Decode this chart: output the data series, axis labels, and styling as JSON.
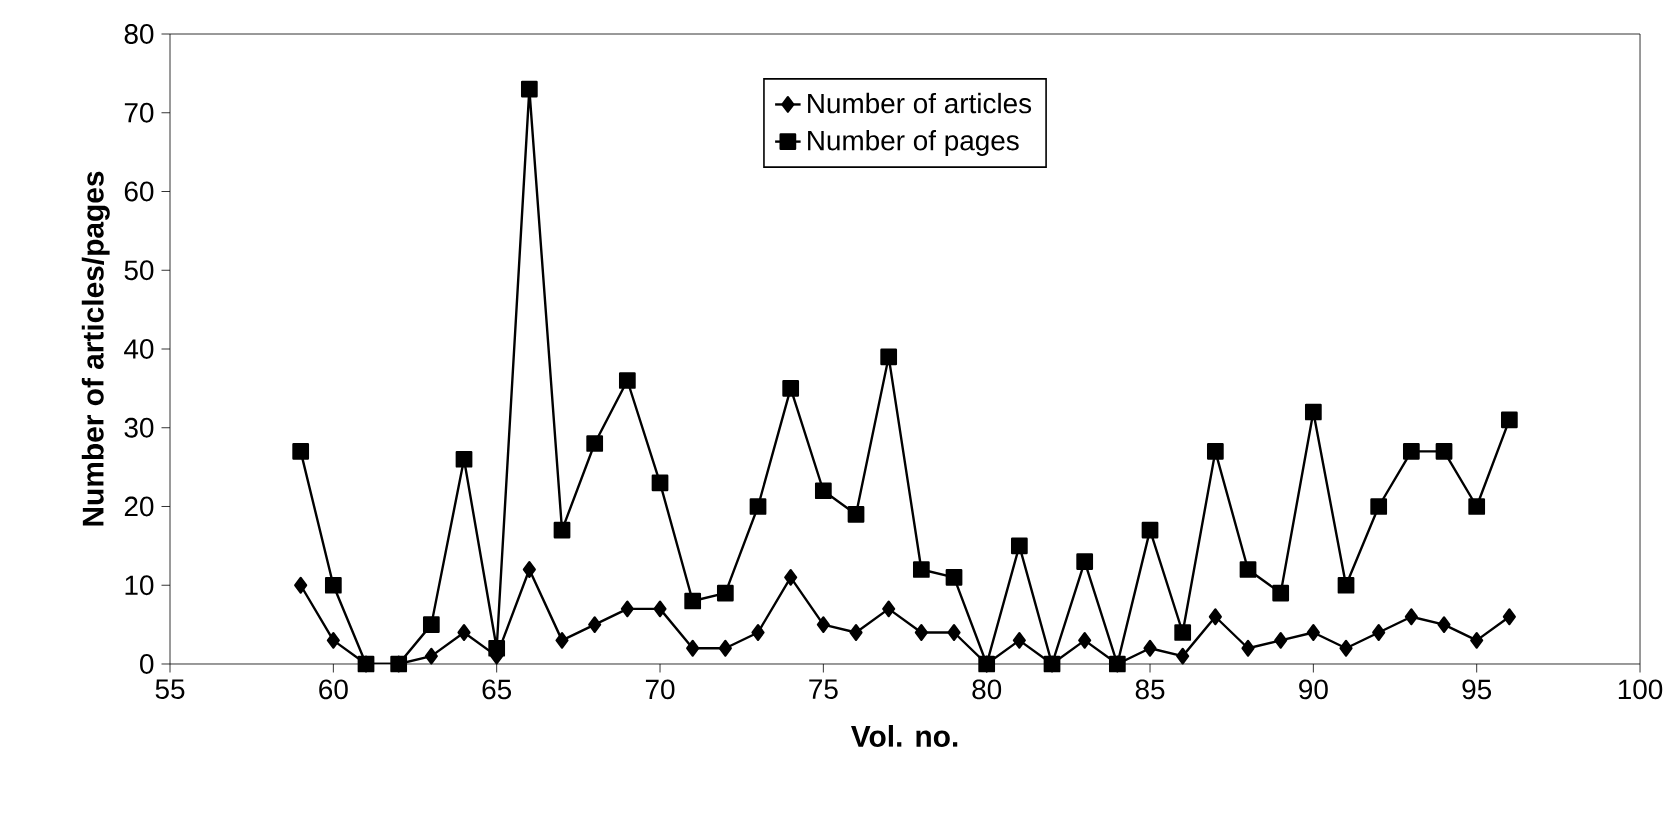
{
  "chart_data": {
    "type": "line",
    "xlabel": "Vol. no.",
    "ylabel": "Number of articles/pages",
    "x": [
      59,
      60,
      61,
      62,
      63,
      64,
      65,
      66,
      67,
      68,
      69,
      70,
      71,
      72,
      73,
      74,
      75,
      76,
      77,
      78,
      79,
      80,
      81,
      82,
      83,
      84,
      85,
      86,
      87,
      88,
      89,
      90,
      91,
      92,
      93,
      94,
      95,
      96
    ],
    "series": [
      {
        "name": "Number of articles",
        "color": "#000000",
        "marker": "diamond",
        "values": [
          10,
          3,
          0,
          0,
          1,
          4,
          1,
          12,
          3,
          5,
          7,
          7,
          2,
          2,
          4,
          11,
          5,
          4,
          7,
          4,
          4,
          0,
          3,
          0,
          3,
          0,
          2,
          1,
          6,
          2,
          3,
          4,
          2,
          4,
          6,
          5,
          3,
          6
        ]
      },
      {
        "name": "Number of pages",
        "color": "#000000",
        "marker": "square",
        "values": [
          27,
          10,
          0,
          0,
          5,
          26,
          2,
          73,
          17,
          28,
          36,
          23,
          8,
          9,
          20,
          35,
          22,
          19,
          39,
          12,
          11,
          0,
          15,
          0,
          13,
          0,
          17,
          4,
          27,
          12,
          9,
          32,
          10,
          20,
          27,
          27,
          20,
          31
        ]
      }
    ],
    "xlim": [
      55,
      100
    ],
    "xticks": [
      55,
      60,
      65,
      70,
      75,
      80,
      85,
      90,
      95,
      100
    ],
    "ylim": [
      0,
      80
    ],
    "yticks": [
      0,
      10,
      20,
      30,
      40,
      50,
      60,
      70,
      80
    ],
    "grid": false,
    "legend": "top",
    "line_style": "solid"
  }
}
